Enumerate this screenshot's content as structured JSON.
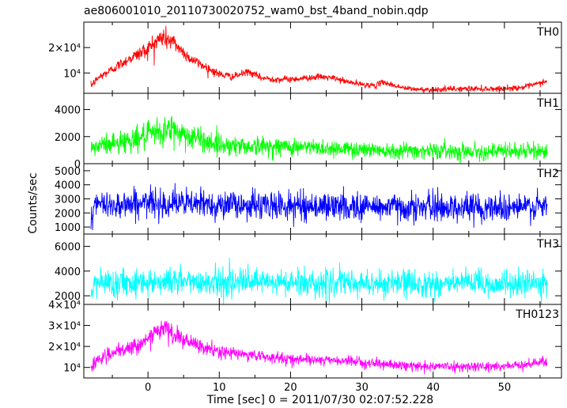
{
  "chart_data": {
    "type": "line",
    "title": "ae806001010_20110730020752_wam0_bst_4band_nobin.qdp",
    "xlabel": "Time [sec] 0 = 2011/07/30 02:07:52.228",
    "ylabel": "Counts/sec",
    "xlim": [
      -9,
      58
    ],
    "x_ticks": [
      0,
      10,
      20,
      30,
      40,
      50
    ],
    "x_range": [
      -8,
      56
    ],
    "grid": false,
    "panels": [
      {
        "name": "TH0",
        "color": "#ff0000",
        "ylim": [
          2000,
          30000
        ],
        "y_ticks": [
          {
            "value": 10000,
            "label": "10⁴"
          },
          {
            "value": 20000,
            "label": "2×10⁴"
          }
        ],
        "profile": [
          [
            -8,
            5000
          ],
          [
            -7,
            8000
          ],
          [
            -5,
            11500
          ],
          [
            -3,
            15000
          ],
          [
            -1,
            18000
          ],
          [
            0,
            19500
          ],
          [
            1,
            22000
          ],
          [
            2,
            24000
          ],
          [
            3,
            23000
          ],
          [
            4,
            21000
          ],
          [
            5,
            18000
          ],
          [
            6,
            15500
          ],
          [
            8,
            12500
          ],
          [
            10,
            9500
          ],
          [
            12,
            8500
          ],
          [
            14,
            10500
          ],
          [
            16,
            8000
          ],
          [
            18,
            7500
          ],
          [
            20,
            7500
          ],
          [
            22,
            8000
          ],
          [
            24,
            8500
          ],
          [
            26,
            8000
          ],
          [
            28,
            6500
          ],
          [
            30,
            5500
          ],
          [
            32,
            5000
          ],
          [
            33,
            6500
          ],
          [
            34,
            5500
          ],
          [
            36,
            4000
          ],
          [
            38,
            3500
          ],
          [
            40,
            3500
          ],
          [
            45,
            3800
          ],
          [
            50,
            3800
          ],
          [
            53,
            4500
          ],
          [
            55,
            6000
          ],
          [
            56,
            7000
          ]
        ],
        "noise_sd": [
          [
            -8,
            700
          ],
          [
            -2,
            1200
          ],
          [
            1,
            2200
          ],
          [
            3,
            2200
          ],
          [
            5,
            1200
          ],
          [
            12,
            700
          ],
          [
            30,
            550
          ],
          [
            56,
            550
          ]
        ]
      },
      {
        "name": "TH1",
        "color": "#00ff00",
        "ylim": [
          0,
          5200
        ],
        "y_ticks": [
          {
            "value": 0,
            "label": "0"
          },
          {
            "value": 2000,
            "label": "2000"
          },
          {
            "value": 4000,
            "label": "4000"
          }
        ],
        "profile": [
          [
            -8,
            1000
          ],
          [
            -7,
            1300
          ],
          [
            -5,
            1500
          ],
          [
            -3,
            1700
          ],
          [
            -1,
            1900
          ],
          [
            1,
            2200
          ],
          [
            3,
            2500
          ],
          [
            4,
            2400
          ],
          [
            6,
            2000
          ],
          [
            8,
            1700
          ],
          [
            10,
            1400
          ],
          [
            14,
            1300
          ],
          [
            20,
            1250
          ],
          [
            25,
            1150
          ],
          [
            30,
            1050
          ],
          [
            40,
            950
          ],
          [
            50,
            900
          ],
          [
            56,
            950
          ]
        ],
        "noise_sd": [
          [
            -8,
            380
          ],
          [
            0,
            480
          ],
          [
            3,
            620
          ],
          [
            6,
            480
          ],
          [
            12,
            360
          ],
          [
            30,
            300
          ],
          [
            56,
            300
          ]
        ]
      },
      {
        "name": "TH2",
        "color": "#0000ff",
        "ylim": [
          500,
          5500
        ],
        "y_ticks": [
          {
            "value": 1000,
            "label": "1000"
          },
          {
            "value": 2000,
            "label": "2000"
          },
          {
            "value": 3000,
            "label": "3000"
          },
          {
            "value": 4000,
            "label": "4000"
          },
          {
            "value": 5000,
            "label": "5000"
          }
        ],
        "profile": [
          [
            -8,
            1500
          ],
          [
            -7.5,
            2500
          ],
          [
            -5,
            2600
          ],
          [
            0,
            2700
          ],
          [
            3,
            2700
          ],
          [
            10,
            2600
          ],
          [
            20,
            2500
          ],
          [
            30,
            2450
          ],
          [
            40,
            2400
          ],
          [
            50,
            2400
          ],
          [
            56,
            2400
          ]
        ],
        "noise_sd": [
          [
            -8,
            500
          ],
          [
            56,
            500
          ]
        ]
      },
      {
        "name": "TH3",
        "color": "#00ffff",
        "ylim": [
          1300,
          7000
        ],
        "y_ticks": [
          {
            "value": 2000,
            "label": "2000"
          },
          {
            "value": 4000,
            "label": "4000"
          },
          {
            "value": 6000,
            "label": "6000"
          }
        ],
        "profile": [
          [
            -8,
            2000
          ],
          [
            -7.5,
            3000
          ],
          [
            -5,
            3100
          ],
          [
            0,
            3150
          ],
          [
            3,
            3200
          ],
          [
            10,
            3100
          ],
          [
            20,
            3050
          ],
          [
            30,
            3000
          ],
          [
            40,
            3000
          ],
          [
            50,
            2950
          ],
          [
            56,
            3000
          ]
        ],
        "noise_sd": [
          [
            -8,
            550
          ],
          [
            56,
            550
          ]
        ]
      },
      {
        "name": "TH0123",
        "color": "#ff00ff",
        "ylim": [
          5000,
          40000
        ],
        "y_ticks": [
          {
            "value": 10000,
            "label": "10⁴"
          },
          {
            "value": 20000,
            "label": "2×10⁴"
          },
          {
            "value": 30000,
            "label": "3×10⁴"
          },
          {
            "value": 40000,
            "label": "4×10⁴"
          }
        ],
        "profile": [
          [
            -8,
            10000
          ],
          [
            -7,
            14000
          ],
          [
            -5,
            16500
          ],
          [
            -3,
            18500
          ],
          [
            -1,
            21500
          ],
          [
            1,
            26000
          ],
          [
            2,
            29000
          ],
          [
            3,
            27000
          ],
          [
            5,
            23000
          ],
          [
            7,
            20000
          ],
          [
            10,
            17500
          ],
          [
            14,
            16000
          ],
          [
            20,
            14000
          ],
          [
            25,
            13500
          ],
          [
            30,
            12500
          ],
          [
            35,
            11000
          ],
          [
            40,
            10500
          ],
          [
            50,
            10500
          ],
          [
            53,
            11500
          ],
          [
            56,
            13000
          ]
        ],
        "noise_sd": [
          [
            -8,
            1400
          ],
          [
            0,
            1900
          ],
          [
            2,
            2700
          ],
          [
            5,
            2000
          ],
          [
            12,
            1400
          ],
          [
            30,
            1100
          ],
          [
            56,
            1100
          ]
        ]
      }
    ]
  }
}
